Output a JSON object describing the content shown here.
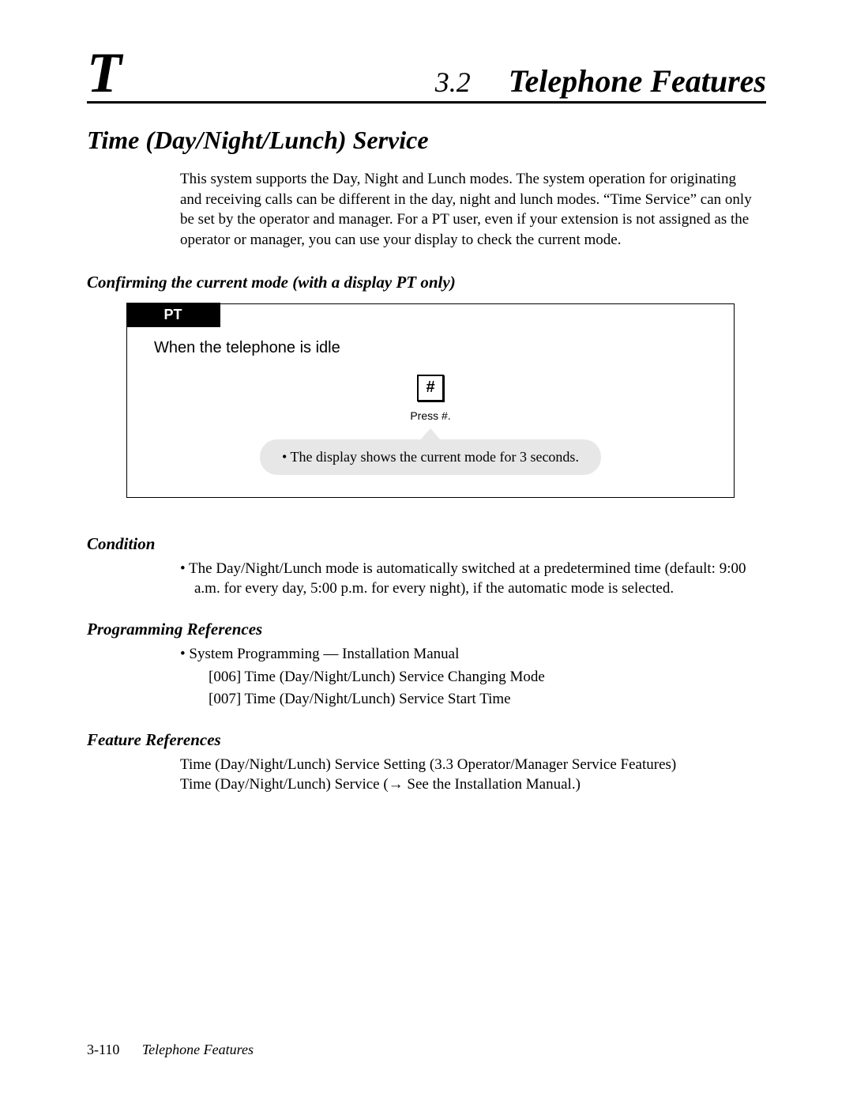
{
  "colors": {
    "page_bg": "#ffffff",
    "text": "#000000",
    "rule": "#000000",
    "pt_tab_bg": "#000000",
    "pt_tab_fg": "#ffffff",
    "callout_bg": "#e7e7e7"
  },
  "typography": {
    "body_family": "Times New Roman",
    "ui_family": "Arial",
    "big_T_pt": 72,
    "section_num_pt": 36,
    "section_title_pt": 40,
    "feature_title_pt": 32,
    "subhead_pt": 21,
    "body_pt": 19,
    "proc_when_pt": 20,
    "key_caption_pt": 14,
    "callout_pt": 18,
    "footer_pt": 18
  },
  "header": {
    "index_letter": "T",
    "section_number": "3.2",
    "section_title": "Telephone Features"
  },
  "feature": {
    "title": "Time (Day/Night/Lunch) Service",
    "intro": "This system supports the Day, Night and Lunch modes. The system operation for originating and receiving calls can be different in the day, night and lunch modes. “Time Service” can only be set by the operator and manager. For a PT user, even if your extension is not assigned as the operator or manager, you can use your display to check the current mode."
  },
  "procedure": {
    "heading": "Confirming the current mode (with a display PT only)",
    "tab_label": "PT",
    "when_text": "When the telephone is idle",
    "key_glyph": "#",
    "key_caption": "Press #.",
    "callout_text": "•  The display shows the current mode for 3 seconds."
  },
  "condition": {
    "heading": "Condition",
    "bullet": "• The Day/Night/Lunch mode is automatically switched at a predetermined time (default: 9:00 a.m. for every day, 5:00 p.m. for every night), if the automatic mode is selected."
  },
  "programming": {
    "heading": "Programming References",
    "bullet": "• System Programming — Installation Manual",
    "lines": [
      "[006]  Time (Day/Night/Lunch) Service Changing Mode",
      "[007]  Time (Day/Night/Lunch) Service Start Time"
    ]
  },
  "feature_refs": {
    "heading": "Feature References",
    "lines": [
      "Time (Day/Night/Lunch) Service Setting (3.3 Operator/Manager Service Features)",
      "Time (Day/Night/Lunch) Service (→ See the Installation Manual.)"
    ]
  },
  "footer": {
    "page_number": "3-110",
    "running_title": "Telephone Features"
  }
}
